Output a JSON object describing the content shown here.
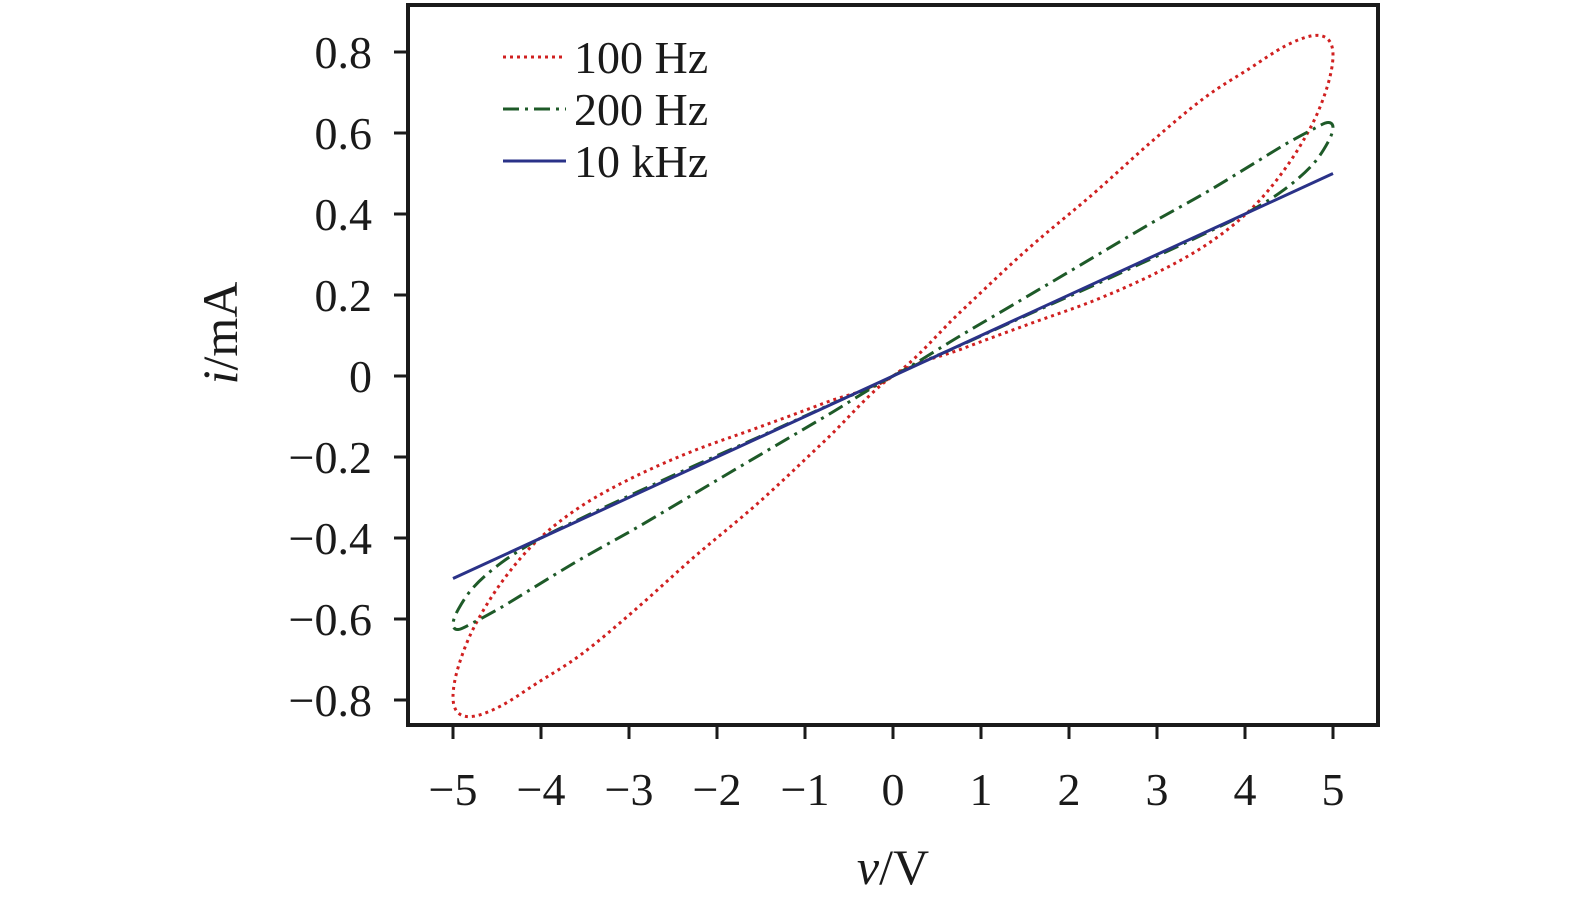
{
  "chart_data": {
    "type": "line",
    "title": "",
    "xlabel_var": "v",
    "xlabel_unit": "/V",
    "ylabel_var": "i",
    "ylabel_unit": "/mA",
    "xlim": [
      -5.25,
      5.5
    ],
    "ylim": [
      -0.86,
      0.92
    ],
    "xticks": [
      -5,
      -4,
      -3,
      -2,
      -1,
      0,
      1,
      2,
      3,
      4,
      5
    ],
    "xtick_labels": [
      "−5",
      "−4",
      "−3",
      "−2",
      "−1",
      "0",
      "1",
      "2",
      "3",
      "4",
      "5"
    ],
    "yticks": [
      0.8,
      0.6,
      0.4,
      0.2,
      0,
      -0.2,
      -0.4,
      -0.6,
      -0.8
    ],
    "ytick_labels": [
      "0.8",
      "0.6",
      "0.4",
      "0.2",
      "0",
      "−0.2",
      "−0.4",
      "−0.6",
      "−0.8"
    ],
    "grid": false,
    "legend_position": "top-left",
    "series": [
      {
        "name": "100 Hz",
        "color": "#d02020",
        "line_style": "dotted",
        "x": [
          0.0,
          0.77,
          1.53,
          2.27,
          2.94,
          3.54,
          4.05,
          4.45,
          4.76,
          4.94,
          5.0,
          4.94,
          4.76,
          4.45,
          4.05,
          3.54,
          2.94,
          2.27,
          1.53,
          0.77,
          0.0,
          -0.77,
          -1.53,
          -2.27,
          -2.94,
          -3.54,
          -4.05,
          -4.45,
          -4.76,
          -4.94,
          -5.0,
          -4.94,
          -4.76,
          -4.45,
          -4.05,
          -3.54,
          -2.94,
          -2.27,
          -1.53,
          -0.77,
          0.0
        ],
        "y": [
          0.0,
          0.159,
          0.313,
          0.449,
          0.579,
          0.687,
          0.759,
          0.814,
          0.84,
          0.832,
          0.792,
          0.718,
          0.62,
          0.51,
          0.408,
          0.321,
          0.249,
          0.185,
          0.127,
          0.066,
          0.0,
          -0.159,
          -0.313,
          -0.449,
          -0.579,
          -0.687,
          -0.759,
          -0.814,
          -0.84,
          -0.832,
          -0.792,
          -0.718,
          -0.62,
          -0.51,
          -0.408,
          -0.321,
          -0.249,
          -0.185,
          -0.127,
          -0.066,
          0.0
        ]
      },
      {
        "name": "200 Hz",
        "color": "#1e5a28",
        "line_style": "dashdot",
        "x": [
          0.0,
          0.77,
          1.53,
          2.27,
          2.94,
          3.54,
          4.05,
          4.45,
          4.76,
          4.94,
          5.0,
          4.94,
          4.76,
          4.45,
          4.05,
          3.54,
          2.94,
          2.27,
          1.53,
          0.77,
          0.0,
          -0.77,
          -1.53,
          -2.27,
          -2.94,
          -3.54,
          -4.05,
          -4.45,
          -4.76,
          -4.94,
          -5.0,
          -4.94,
          -4.76,
          -4.45,
          -4.05,
          -3.54,
          -2.94,
          -2.27,
          -1.53,
          -0.77,
          0.0
        ],
        "y": [
          0.0,
          0.1,
          0.197,
          0.292,
          0.378,
          0.451,
          0.518,
          0.571,
          0.608,
          0.626,
          0.613,
          0.576,
          0.52,
          0.461,
          0.406,
          0.351,
          0.29,
          0.223,
          0.151,
          0.076,
          0.0,
          -0.1,
          -0.197,
          -0.292,
          -0.378,
          -0.451,
          -0.518,
          -0.571,
          -0.608,
          -0.626,
          -0.613,
          -0.576,
          -0.52,
          -0.461,
          -0.406,
          -0.351,
          -0.29,
          -0.223,
          -0.151,
          -0.076,
          0.0
        ]
      },
      {
        "name": "10 kHz",
        "color": "#2a3288",
        "line_style": "solid",
        "x": [
          -5.0,
          5.0
        ],
        "y": [
          -0.5,
          0.5
        ]
      }
    ]
  }
}
